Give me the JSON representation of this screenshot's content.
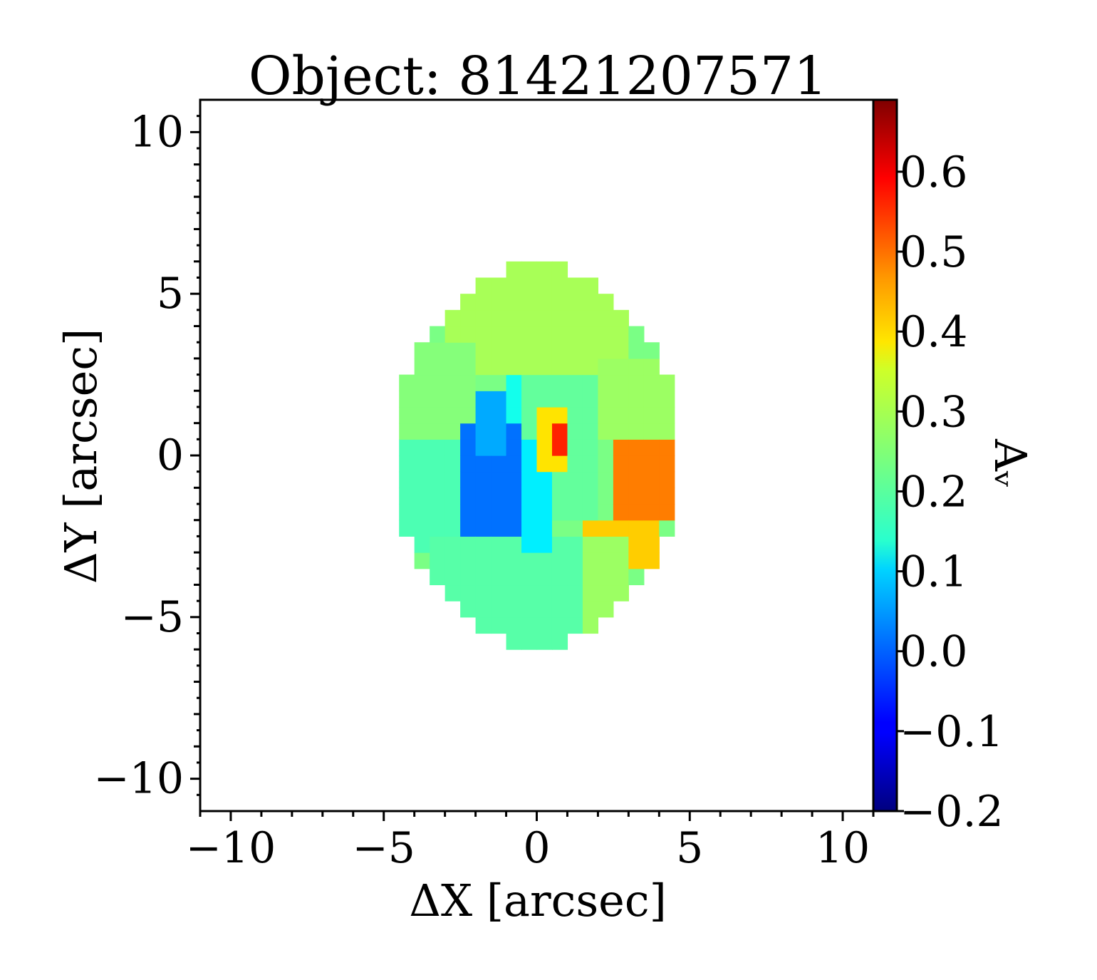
{
  "chart_data": {
    "type": "heatmap",
    "title": "Object: 81421207571",
    "xlabel": "ΔX [arcsec]",
    "ylabel": "ΔY [arcsec]",
    "xlim": [
      -11,
      11
    ],
    "ylim": [
      -11,
      11
    ],
    "x_ticks": [
      -10,
      -5,
      0,
      5,
      10
    ],
    "x_tick_labels": [
      "−10",
      "−5",
      "0",
      "5",
      "10"
    ],
    "y_ticks": [
      -10,
      -5,
      0,
      5,
      10
    ],
    "y_tick_labels": [
      "−10",
      "−5",
      "0",
      "5",
      "10"
    ],
    "colorbar": {
      "label": "Aᵥ",
      "colormap": "jet",
      "range": [
        -0.2,
        0.69
      ],
      "ticks": [
        -0.2,
        -0.1,
        0.0,
        0.1,
        0.2,
        0.3,
        0.4,
        0.5,
        0.6
      ],
      "tick_labels": [
        "−0.2",
        "−0.1",
        "0.0",
        "0.1",
        "0.2",
        "0.3",
        "0.4",
        "0.5",
        "0.6"
      ]
    },
    "map": {
      "cell_size_arcsec": 0.5,
      "ellipse": {
        "center": [
          0.0,
          0.0
        ],
        "semi_x": 4.6,
        "semi_y": 5.9
      },
      "regions": [
        {
          "name": "top",
          "x": [
            -3.0,
            3.0
          ],
          "y": [
            2.5,
            6.0
          ],
          "value": 0.28
        },
        {
          "name": "upper-left",
          "x": [
            -5.0,
            -2.0
          ],
          "y": [
            0.0,
            3.5
          ],
          "value": 0.25
        },
        {
          "name": "upper-right",
          "x": [
            2.0,
            5.0
          ],
          "y": [
            0.5,
            3.0
          ],
          "value": 0.27
        },
        {
          "name": "right",
          "x": [
            2.5,
            4.7
          ],
          "y": [
            -1.8,
            0.5
          ],
          "value": 0.47
        },
        {
          "name": "lower-right",
          "x": [
            1.7,
            4.0
          ],
          "y": [
            -3.6,
            -1.8
          ],
          "value": 0.4
        },
        {
          "name": "lower-right-outer",
          "x": [
            1.0,
            3.0
          ],
          "y": [
            -5.5,
            -2.5
          ],
          "value": 0.27
        },
        {
          "name": "left",
          "x": [
            -4.6,
            -2.5
          ],
          "y": [
            -3.0,
            0.3
          ],
          "value": 0.2
        },
        {
          "name": "bottom",
          "x": [
            -3.5,
            1.5
          ],
          "y": [
            -5.8,
            -2.5
          ],
          "value": 0.21
        },
        {
          "name": "inner-ring",
          "x": [
            -1.0,
            2.0
          ],
          "y": [
            -2.0,
            2.5
          ],
          "value": 0.22
        },
        {
          "name": "blue-core",
          "x": [
            -2.5,
            -0.3
          ],
          "y": [
            -2.5,
            1.0
          ],
          "value": 0.01
        },
        {
          "name": "blue-wing",
          "x": [
            -2.0,
            -1.2
          ],
          "y": [
            0.2,
            1.8
          ],
          "value": 0.06
        },
        {
          "name": "cyan-arm",
          "x": [
            -0.5,
            0.3
          ],
          "y": [
            -3.0,
            0.5
          ],
          "value": 0.12
        },
        {
          "name": "cyan-top",
          "x": [
            -1.0,
            -0.3
          ],
          "y": [
            1.0,
            2.4
          ],
          "value": 0.15
        },
        {
          "name": "peak-halo",
          "x": [
            0.1,
            1.2
          ],
          "y": [
            -0.5,
            1.3
          ],
          "value": 0.38
        },
        {
          "name": "peak",
          "x": [
            0.5,
            1.0
          ],
          "y": [
            -0.2,
            0.8
          ],
          "value": 0.55
        }
      ]
    }
  }
}
